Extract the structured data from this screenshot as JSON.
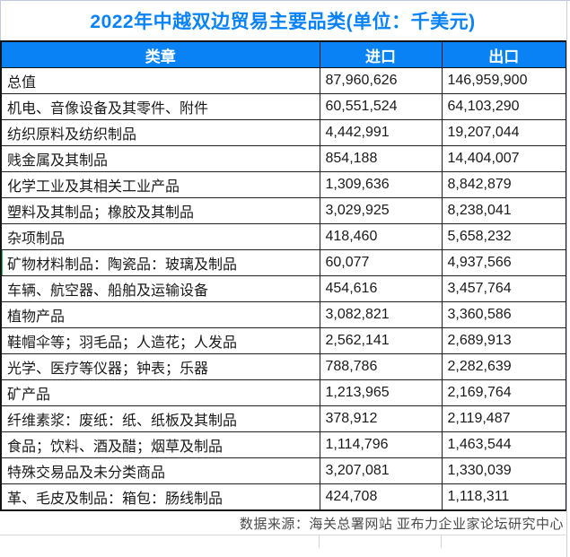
{
  "title": "2022年中越双边贸易主要品类(单位：千美元)",
  "colors": {
    "accent_blue": "#0882f5",
    "header_text": "#ffffff",
    "row_marker_green": "#33be6c",
    "grid_black": "#202020",
    "sheet_gridline": "#c9cddc",
    "footer_gray": "#4a4a4a"
  },
  "table": {
    "headers": [
      "类章",
      "进口",
      "出口"
    ],
    "rows": [
      {
        "category": "总值",
        "import": "87,960,626",
        "export": "146,959,900"
      },
      {
        "category": "机电、音像设备及其零件、附件",
        "import": "60,551,524",
        "export": "64,103,290"
      },
      {
        "category": "纺织原料及纺织制品",
        "import": "4,442,991",
        "export": "19,207,044"
      },
      {
        "category": "贱金属及其制品",
        "import": "854,188",
        "export": "14,404,007"
      },
      {
        "category": "化学工业及其相关工业产品",
        "import": "1,309,636",
        "export": "8,842,879"
      },
      {
        "category": "塑料及其制品；橡胶及其制品",
        "import": "3,029,925",
        "export": "8,238,041"
      },
      {
        "category": "杂项制品",
        "import": "418,460",
        "export": "5,658,232"
      },
      {
        "category": "矿物材料制品：陶瓷品：玻璃及制品",
        "import": "60,077",
        "export": "4,937,566"
      },
      {
        "category": "车辆、航空器、船舶及运输设备",
        "import": "454,616",
        "export": "3,457,764"
      },
      {
        "category": "植物产品",
        "import": "3,082,821",
        "export": "3,360,586"
      },
      {
        "category": "鞋帽伞等；羽毛品；人造花；人发品",
        "import": "2,562,141",
        "export": "2,689,913"
      },
      {
        "category": "光学、医疗等仪器；钟表；乐器",
        "import": "788,786",
        "export": "2,282,639"
      },
      {
        "category": "矿产品",
        "import": "1,213,965",
        "export": "2,169,764"
      },
      {
        "category": "纤维素浆：废纸：纸、纸板及其制品",
        "import": "378,912",
        "export": "2,119,487"
      },
      {
        "category": "食品；饮料、酒及醋；烟草及制品",
        "import": "1,114,796",
        "export": "1,463,544"
      },
      {
        "category": "特殊交易品及未分类商品",
        "import": "3,207,081",
        "export": "1,330,039"
      },
      {
        "category": "革、毛皮及制品：箱包：肠线制品",
        "import": "424,708",
        "export": "1,118,311"
      }
    ]
  },
  "footer": {
    "source": "数据来源：海关总署网站 亚布力企业家论坛研究中心"
  },
  "chart_data": {
    "type": "table",
    "title": "2022年中越双边贸易主要品类(单位：千美元)",
    "columns": [
      "类章",
      "进口",
      "出口"
    ],
    "unit": "千美元",
    "rows": [
      [
        "总值",
        87960626,
        146959900
      ],
      [
        "机电、音像设备及其零件、附件",
        60551524,
        64103290
      ],
      [
        "纺织原料及纺织制品",
        4442991,
        19207044
      ],
      [
        "贱金属及其制品",
        854188,
        14404007
      ],
      [
        "化学工业及其相关工业产品",
        1309636,
        8842879
      ],
      [
        "塑料及其制品；橡胶及其制品",
        3029925,
        8238041
      ],
      [
        "杂项制品",
        418460,
        5658232
      ],
      [
        "矿物材料制品：陶瓷品：玻璃及制品",
        60077,
        4937566
      ],
      [
        "车辆、航空器、船舶及运输设备",
        454616,
        3457764
      ],
      [
        "植物产品",
        3082821,
        3360586
      ],
      [
        "鞋帽伞等；羽毛品；人造花；人发品",
        2562141,
        2689913
      ],
      [
        "光学、医疗等仪器；钟表；乐器",
        788786,
        2282639
      ],
      [
        "矿产品",
        1213965,
        2169764
      ],
      [
        "纤维素浆：废纸：纸、纸板及其制品",
        378912,
        2119487
      ],
      [
        "食品；饮料、酒及醋；烟草及制品",
        1114796,
        1463544
      ],
      [
        "特殊交易品及未分类商品",
        3207081,
        1330039
      ],
      [
        "革、毛皮及制品：箱包：肠线制品",
        424708,
        1118311
      ]
    ],
    "source": "数据来源：海关总署网站 亚布力企业家论坛研究中心"
  }
}
